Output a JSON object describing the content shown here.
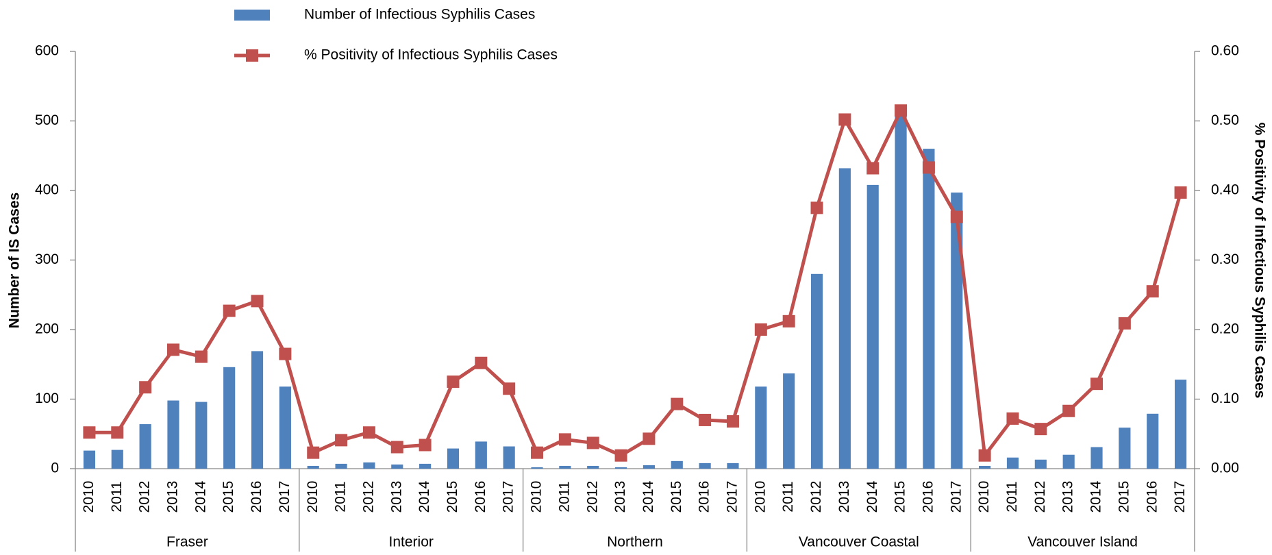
{
  "chart_data": {
    "type": "combo",
    "categories": [
      "2010",
      "2011",
      "2012",
      "2013",
      "2014",
      "2015",
      "2016",
      "2017",
      "2010",
      "2011",
      "2012",
      "2013",
      "2014",
      "2015",
      "2016",
      "2017",
      "2010",
      "2011",
      "2012",
      "2013",
      "2014",
      "2015",
      "2016",
      "2017",
      "2010",
      "2011",
      "2012",
      "2013",
      "2014",
      "2015",
      "2016",
      "2017",
      "2010",
      "2011",
      "2012",
      "2013",
      "2014",
      "2015",
      "2016",
      "2017"
    ],
    "groups": [
      "Fraser",
      "Interior",
      "Northern",
      "Vancouver Coastal",
      "Vancouver Island"
    ],
    "y_axis_label": "Number of IS Cases",
    "y2_axis_label": "% Positivity of Infectious Syphilis Cases",
    "ylim": [
      0,
      600
    ],
    "yticks": [
      0,
      100,
      200,
      300,
      400,
      500,
      600
    ],
    "y2lim": [
      0,
      0.6
    ],
    "y2ticks": [
      {
        "value": 0,
        "label": "0.00"
      },
      {
        "value": 0.1,
        "label": "0.10"
      },
      {
        "value": 0.2,
        "label": "0.20"
      },
      {
        "value": 0.3,
        "label": "0.30"
      },
      {
        "value": 0.4,
        "label": "0.40"
      },
      {
        "value": 0.5,
        "label": "0.50"
      },
      {
        "value": 0.6,
        "label": "0.60"
      }
    ],
    "series": [
      {
        "name": "Number of Infectious Syphilis Cases",
        "type": "bar",
        "color": "#4f81bd",
        "values": [
          26,
          27,
          64,
          98,
          96,
          146,
          169,
          118,
          4,
          7,
          9,
          6,
          7,
          29,
          39,
          32,
          2,
          4,
          4,
          2,
          5,
          11,
          8,
          8,
          118,
          137,
          280,
          432,
          408,
          510,
          460,
          397,
          4,
          16,
          13,
          20,
          31,
          59,
          79,
          128
        ]
      },
      {
        "name": "% Positivity of Infectious Syphilis Cases",
        "type": "line",
        "axis": "y2",
        "color": "#c0504d",
        "values": [
          0.052,
          0.052,
          0.117,
          0.171,
          0.161,
          0.227,
          0.241,
          0.165,
          0.023,
          0.041,
          0.052,
          0.031,
          0.034,
          0.125,
          0.152,
          0.115,
          0.023,
          0.042,
          0.037,
          0.019,
          0.043,
          0.093,
          0.07,
          0.068,
          0.2,
          0.212,
          0.375,
          0.502,
          0.432,
          0.515,
          0.433,
          0.362,
          0.019,
          0.072,
          0.057,
          0.083,
          0.122,
          0.209,
          0.255,
          0.397
        ]
      }
    ]
  }
}
